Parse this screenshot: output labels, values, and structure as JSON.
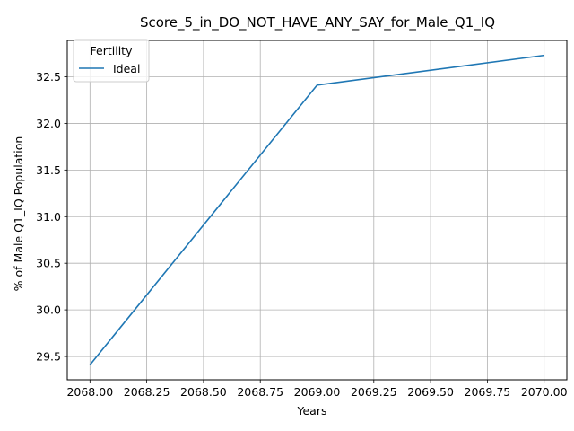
{
  "chart_data": {
    "type": "line",
    "title": "Score_5_in_DO_NOT_HAVE_ANY_SAY_for_Male_Q1_IQ",
    "xlabel": "Years",
    "ylabel": "% of Male Q1_IQ Population",
    "x": [
      2068,
      2069,
      2070
    ],
    "series": [
      {
        "name": "Ideal",
        "values": [
          29.41,
          32.41,
          32.73
        ],
        "color": "#1f77b4"
      }
    ],
    "xlim": [
      2067.9,
      2070.1
    ],
    "ylim": [
      29.25,
      32.89
    ],
    "xticks": [
      2068.0,
      2068.25,
      2068.5,
      2068.75,
      2069.0,
      2069.25,
      2069.5,
      2069.75,
      2070.0
    ],
    "xtick_labels": [
      "2068.00",
      "2068.25",
      "2068.50",
      "2068.75",
      "2069.00",
      "2069.25",
      "2069.50",
      "2069.75",
      "2070.00"
    ],
    "yticks": [
      29.5,
      30.0,
      30.5,
      31.0,
      31.5,
      32.0,
      32.5
    ],
    "ytick_labels": [
      "29.5",
      "30.0",
      "30.5",
      "31.0",
      "31.5",
      "32.0",
      "32.5"
    ],
    "grid": true,
    "legend": {
      "title": "Fertility",
      "placement": "top-left"
    }
  }
}
